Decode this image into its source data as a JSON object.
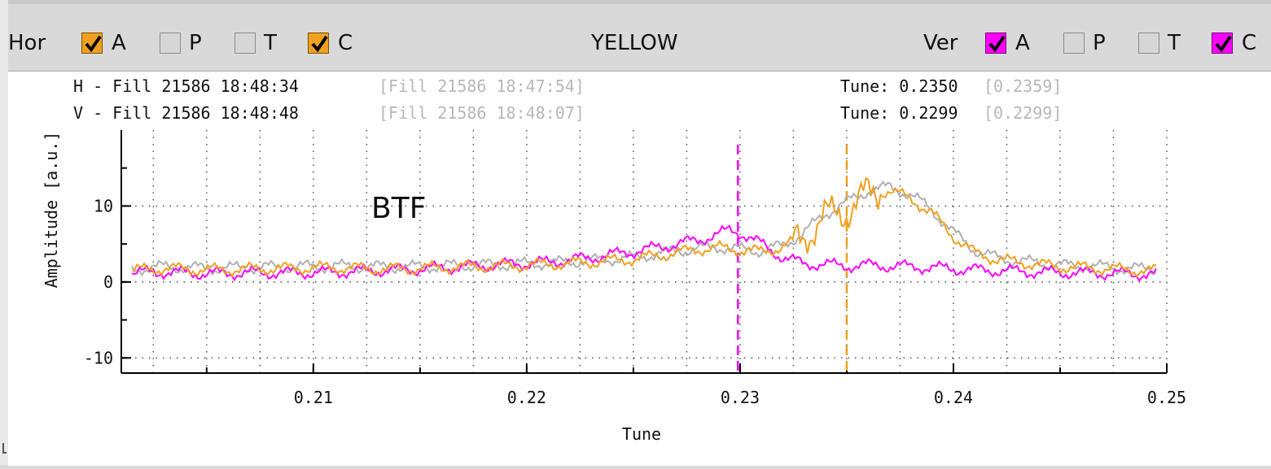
{
  "toolbar": {
    "hor_label": "Hor",
    "ver_label": "Ver",
    "title": "YELLOW",
    "hor_options": [
      {
        "label": "A",
        "checked": true
      },
      {
        "label": "P",
        "checked": false
      },
      {
        "label": "T",
        "checked": false
      },
      {
        "label": "C",
        "checked": true
      }
    ],
    "ver_options": [
      {
        "label": "A",
        "checked": true
      },
      {
        "label": "P",
        "checked": false
      },
      {
        "label": "T",
        "checked": false
      },
      {
        "label": "C",
        "checked": true
      }
    ],
    "hor_color": "#f0a020",
    "ver_color": "#ff00ff"
  },
  "info": {
    "h_line": "H - Fill 21586 18:48:34",
    "h_ref": "[Fill 21586 18:47:54]",
    "v_line": "V - Fill 21586 18:48:48",
    "v_ref": "[Fill 21586 18:48:07]",
    "h_tune": "Tune: 0.2350",
    "h_tune_ref": "[0.2359]",
    "v_tune": "Tune: 0.2299",
    "v_tune_ref": "[0.2299]"
  },
  "plot": {
    "overlay_label": "BTF"
  },
  "chart_data": {
    "type": "line",
    "xlabel": "Tune",
    "ylabel": "Amplitude [a.u.]",
    "xlim": [
      0.201,
      0.25
    ],
    "ylim": [
      -12,
      20
    ],
    "x_ticks": [
      "0.21",
      "0.22",
      "0.23",
      "0.24",
      "0.25"
    ],
    "y_ticks": [
      "-10",
      "0",
      "10"
    ],
    "grid": true,
    "markers": [
      {
        "x": 0.2299,
        "color": "#ff00ff"
      },
      {
        "x": 0.235,
        "color": "#f0a020"
      }
    ],
    "series": [
      {
        "color": "#f0a020",
        "x": [
          0.2015,
          0.203,
          0.205,
          0.207,
          0.209,
          0.211,
          0.213,
          0.215,
          0.217,
          0.219,
          0.221,
          0.223,
          0.225,
          0.2265,
          0.228,
          0.229,
          0.23,
          0.231,
          0.232,
          0.233,
          0.234,
          0.235,
          0.236,
          0.237,
          0.238,
          0.239,
          0.24,
          0.241,
          0.242,
          0.243,
          0.244,
          0.245,
          0.246,
          0.247,
          0.248,
          0.2495
        ],
        "y": [
          1.5,
          1.8,
          1.6,
          1.7,
          1.8,
          1.9,
          1.7,
          1.8,
          2.0,
          2.1,
          2.3,
          2.6,
          3.0,
          3.6,
          4.3,
          4.5,
          4.2,
          4.0,
          4.6,
          6.0,
          8.5,
          9.5,
          11.5,
          12.0,
          11.0,
          9.0,
          6.0,
          3.8,
          3.0,
          2.6,
          2.3,
          2.0,
          1.9,
          1.8,
          1.6,
          1.5
        ]
      },
      {
        "color": "#b0b0b0",
        "x": [
          0.2015,
          0.203,
          0.205,
          0.207,
          0.209,
          0.211,
          0.213,
          0.215,
          0.217,
          0.219,
          0.221,
          0.223,
          0.225,
          0.2265,
          0.228,
          0.229,
          0.23,
          0.231,
          0.232,
          0.233,
          0.234,
          0.235,
          0.236,
          0.237,
          0.238,
          0.239,
          0.24,
          0.241,
          0.242,
          0.243,
          0.244,
          0.245,
          0.246,
          0.247,
          0.248,
          0.2495
        ],
        "y": [
          1.7,
          2.0,
          1.8,
          1.9,
          2.0,
          2.1,
          2.0,
          2.0,
          2.2,
          2.3,
          2.5,
          2.8,
          3.2,
          3.9,
          4.4,
          4.6,
          4.3,
          4.1,
          4.8,
          6.5,
          9.0,
          10.5,
          12.0,
          12.5,
          11.5,
          9.5,
          6.5,
          4.2,
          3.2,
          2.8,
          2.5,
          2.2,
          2.1,
          2.0,
          1.8,
          1.7
        ]
      },
      {
        "color": "#ff00ff",
        "x": [
          0.2015,
          0.203,
          0.205,
          0.207,
          0.209,
          0.211,
          0.213,
          0.215,
          0.217,
          0.219,
          0.221,
          0.223,
          0.225,
          0.2265,
          0.228,
          0.229,
          0.2295,
          0.23,
          0.231,
          0.232,
          0.233,
          0.234,
          0.235,
          0.236,
          0.237,
          0.238,
          0.239,
          0.24,
          0.242,
          0.244,
          0.246,
          0.248,
          0.2495
        ],
        "y": [
          1.2,
          1.3,
          1.1,
          1.2,
          1.2,
          1.3,
          1.5,
          1.7,
          2.0,
          2.3,
          2.6,
          3.2,
          4.0,
          4.7,
          5.5,
          6.3,
          6.8,
          6.5,
          5.0,
          3.2,
          2.4,
          2.3,
          2.1,
          2.2,
          2.1,
          2.0,
          1.9,
          1.7,
          1.5,
          1.3,
          1.2,
          1.1,
          1.0
        ]
      }
    ]
  }
}
